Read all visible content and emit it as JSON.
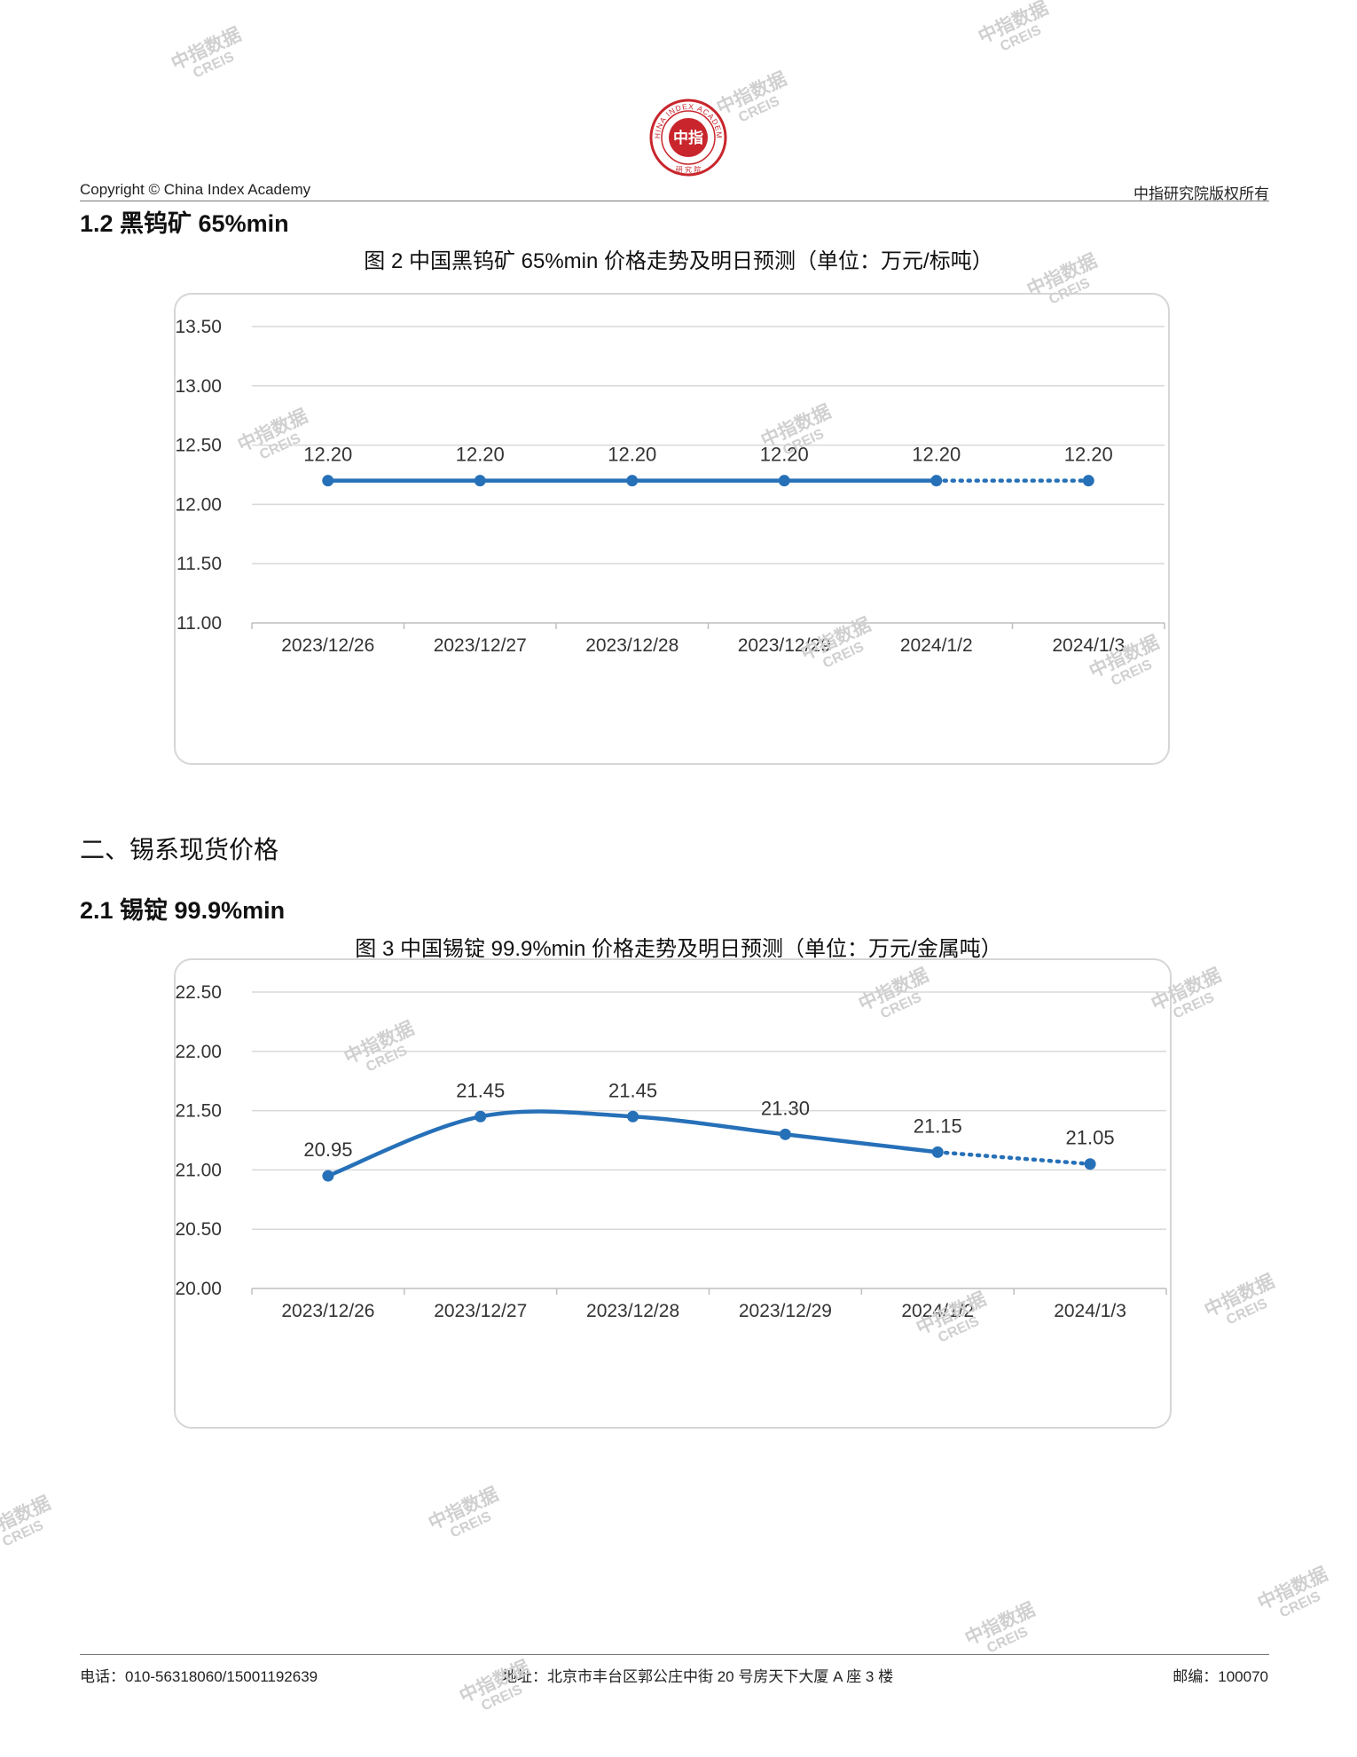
{
  "header": {
    "copyright": "Copyright © China Index Academy",
    "rights": "中指研究院版权所有",
    "logo_text": "CHINA INDEX ACADEMY",
    "logo_center": "中指",
    "logo_bottom": "研究院"
  },
  "watermark": {
    "line1": "中指数据",
    "line2": "CREIS"
  },
  "sections": {
    "s1_2": "1.2 黑钨矿 65%min",
    "s2": "二、锡系现货价格",
    "s2_1": "2.1 锡锭 99.9%min"
  },
  "figures": {
    "fig2_title": "图 2 中国黑钨矿 65%min 价格走势及明日预测（单位：万元/标吨）",
    "fig3_title": "图 3 中国锡锭 99.9%min 价格走势及明日预测（单位：万元/金属吨）"
  },
  "chart_data": [
    {
      "type": "line",
      "title": "图 2 中国黑钨矿 65%min 价格走势及明日预测（单位：万元/标吨）",
      "categories": [
        "2023/12/26",
        "2023/12/27",
        "2023/12/28",
        "2023/12/29",
        "2024/1/2",
        "2024/1/3"
      ],
      "values": [
        12.2,
        12.2,
        12.2,
        12.2,
        12.2,
        12.2
      ],
      "value_labels": [
        "12.20",
        "12.20",
        "12.20",
        "12.20",
        "12.20",
        "12.20"
      ],
      "forecast_last_point": true,
      "ylim": [
        11.0,
        13.5
      ],
      "yticks": [
        "11.00",
        "11.50",
        "12.00",
        "12.50",
        "13.00",
        "13.50"
      ],
      "grid": true,
      "smooth": false,
      "line_color": "#2670b8"
    },
    {
      "type": "line",
      "title": "图 3 中国锡锭 99.9%min 价格走势及明日预测（单位：万元/金属吨）",
      "categories": [
        "2023/12/26",
        "2023/12/27",
        "2023/12/28",
        "2023/12/29",
        "2024/1/2",
        "2024/1/3"
      ],
      "values": [
        20.95,
        21.45,
        21.45,
        21.3,
        21.15,
        21.05
      ],
      "value_labels": [
        "20.95",
        "21.45",
        "21.45",
        "21.30",
        "21.15",
        "21.05"
      ],
      "forecast_last_point": true,
      "ylim": [
        20.0,
        22.5
      ],
      "yticks": [
        "20.00",
        "20.50",
        "21.00",
        "21.50",
        "22.00",
        "22.50"
      ],
      "grid": true,
      "smooth": true,
      "line_color": "#2670b8"
    }
  ],
  "footer": {
    "phone": "电话：010-56318060/15001192639",
    "address": "地址：北京市丰台区郭公庄中街 20 号房天下大厦 A 座 3 楼",
    "postcode": "邮编：100070"
  }
}
